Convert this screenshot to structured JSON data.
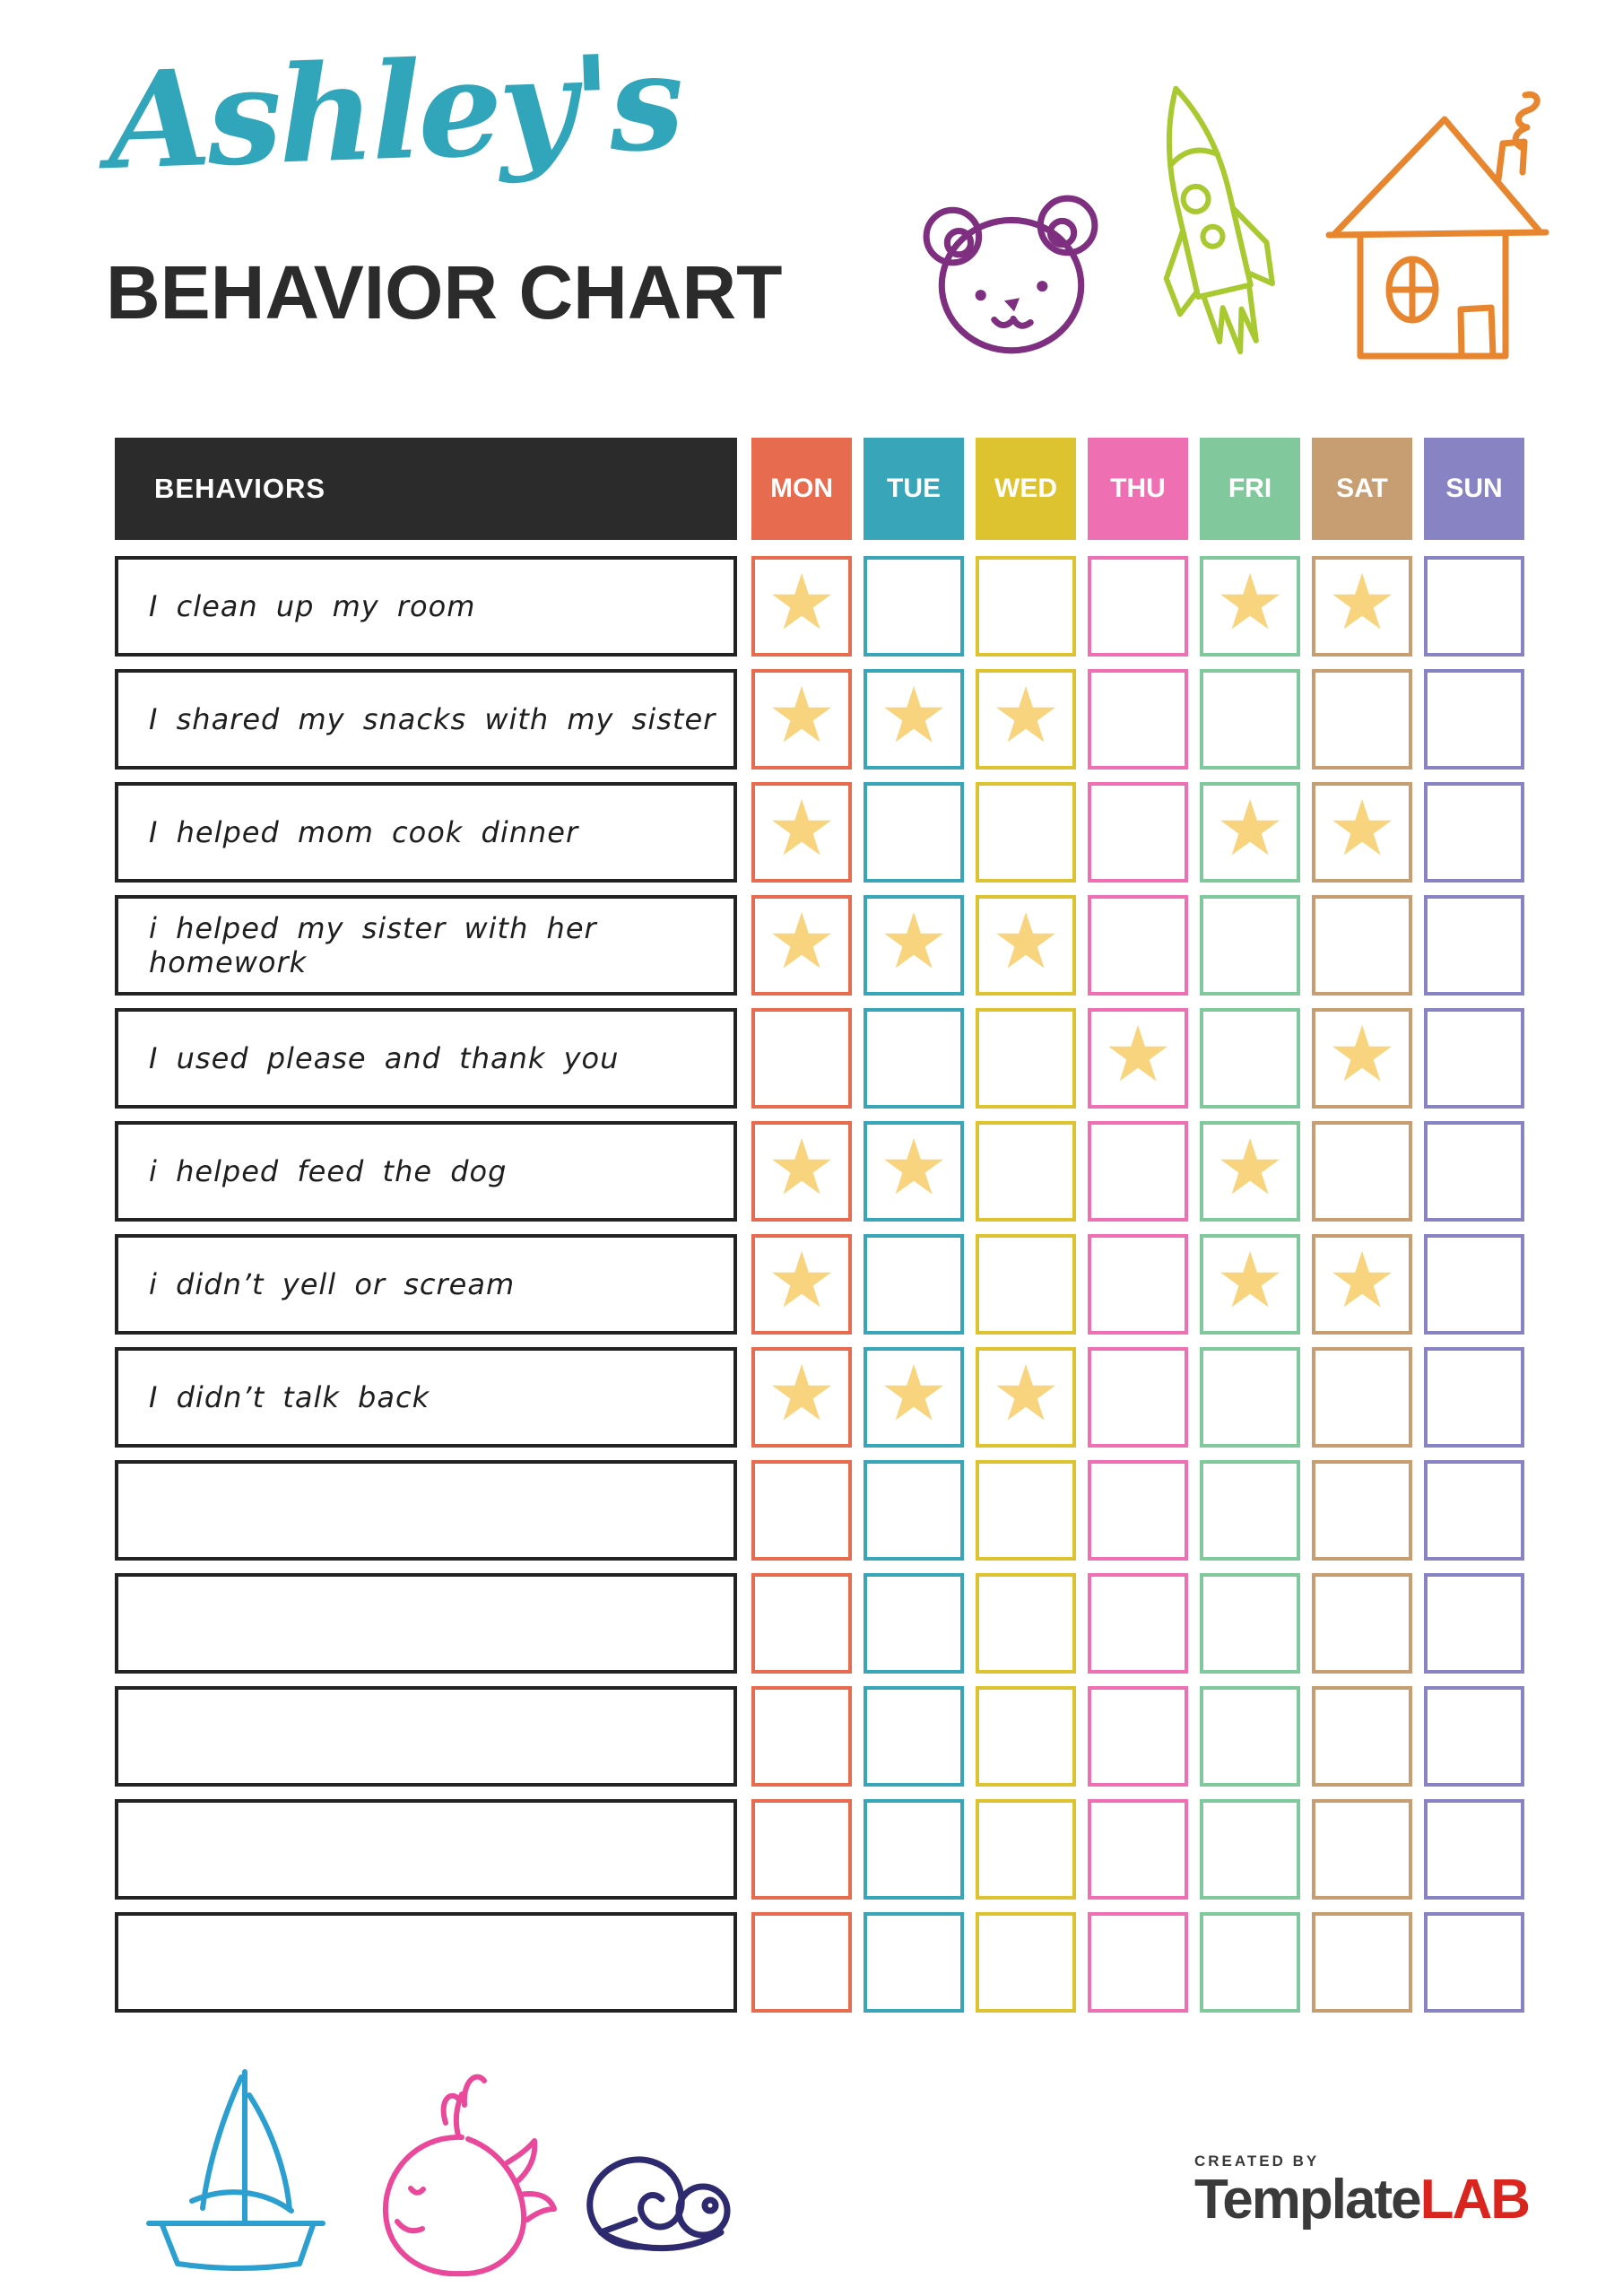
{
  "header": {
    "script_title": "Ashley's",
    "main_title": "BEHAVIOR CHART"
  },
  "table": {
    "behaviors_header": "BEHAVIORS",
    "days": [
      {
        "label": "MON",
        "color": "#E76C4F"
      },
      {
        "label": "TUE",
        "color": "#39A5B9"
      },
      {
        "label": "WED",
        "color": "#DCC32F"
      },
      {
        "label": "THU",
        "color": "#EF6FB3"
      },
      {
        "label": "FRI",
        "color": "#82C89D"
      },
      {
        "label": "SAT",
        "color": "#C79E72"
      },
      {
        "label": "SUN",
        "color": "#8884C4"
      }
    ],
    "rows": [
      {
        "behavior": "I clean up my room",
        "stars": [
          "MON",
          "FRI",
          "SAT"
        ]
      },
      {
        "behavior": "I shared my snacks with my sister",
        "stars": [
          "MON",
          "TUE",
          "WED"
        ]
      },
      {
        "behavior": "I helped mom cook dinner",
        "stars": [
          "MON",
          "FRI",
          "SAT"
        ]
      },
      {
        "behavior": "i helped my sister with her homework",
        "stars": [
          "MON",
          "TUE",
          "WED"
        ]
      },
      {
        "behavior": "I used please and thank you",
        "stars": [
          "THU",
          "SAT"
        ]
      },
      {
        "behavior": "i helped feed the dog",
        "stars": [
          "MON",
          "TUE",
          "FRI"
        ]
      },
      {
        "behavior": "i didn’t yell or scream",
        "stars": [
          "MON",
          "FRI",
          "SAT"
        ]
      },
      {
        "behavior": "I didn’t talk back",
        "stars": [
          "MON",
          "TUE",
          "WED"
        ]
      },
      {
        "behavior": "",
        "stars": []
      },
      {
        "behavior": "",
        "stars": []
      },
      {
        "behavior": "",
        "stars": []
      },
      {
        "behavior": "",
        "stars": []
      },
      {
        "behavior": "",
        "stars": []
      }
    ]
  },
  "icons": {
    "star_glyph": "★",
    "top_icons": [
      "bear-icon",
      "rocket-icon",
      "house-icon"
    ],
    "bottom_icons": [
      "sailboat-icon",
      "whale-icon",
      "snail-icon"
    ]
  },
  "footer": {
    "created_by": "CREATED BY",
    "brand_left": "Template",
    "brand_right": "LAB"
  },
  "colors": {
    "script_title": "#31A6BB",
    "main_title": "#2B2B2B",
    "behaviors_header_bg": "#2B2B2B",
    "header_text": "#FFFFFF",
    "row_border": "#232323",
    "star": "#F8D47E",
    "bear": "#7E2F80",
    "rocket": "#A8C930",
    "house": "#E8862F",
    "sailboat": "#2C9FD1",
    "whale": "#E9489B",
    "snail": "#2D2A70",
    "brand_dark": "#3A3A3A",
    "brand_red": "#D9251D"
  }
}
